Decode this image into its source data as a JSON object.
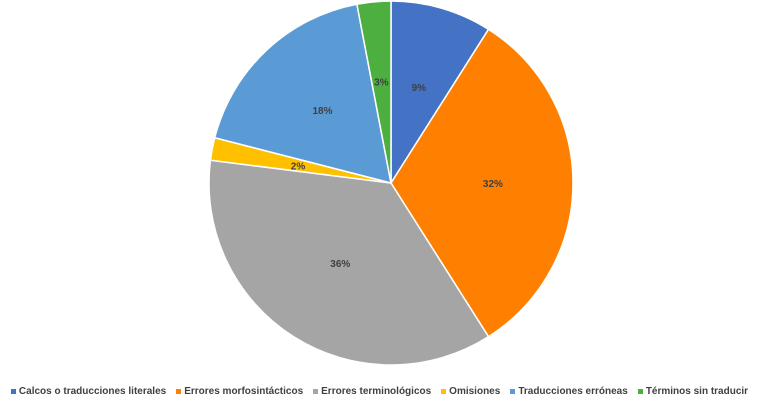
{
  "chart_data": {
    "type": "pie",
    "title": "",
    "slices": [
      {
        "label": "Calcos o traducciones literales",
        "value": 9,
        "display": "9%",
        "color": "#4472C4"
      },
      {
        "label": "Errores morfosintácticos",
        "value": 32,
        "display": "32%",
        "color": "#FF7F00"
      },
      {
        "label": "Errores terminológicos",
        "value": 36,
        "display": "36%",
        "color": "#A5A5A5"
      },
      {
        "label": "Omisiones",
        "value": 2,
        "display": "2%",
        "color": "#FFC000"
      },
      {
        "label": "Traducciones erróneas",
        "value": 18,
        "display": "18%",
        "color": "#5B9BD5"
      },
      {
        "label": "Términos sin traducir",
        "value": 3,
        "display": "3%",
        "color": "#4CAF3F"
      }
    ],
    "start_angle_deg": 0,
    "direction": "clockwise",
    "legend_position": "bottom",
    "data_labels": true
  }
}
